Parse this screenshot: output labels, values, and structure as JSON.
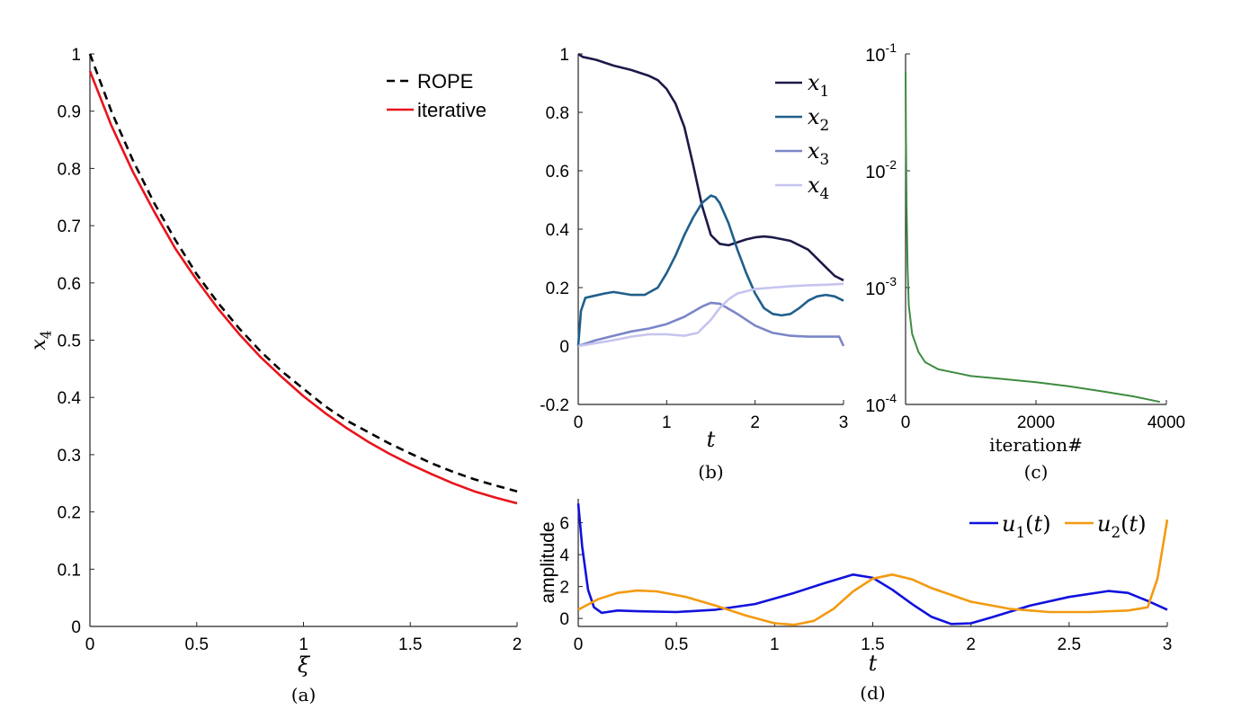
{
  "chart_data": [
    {
      "type": "line",
      "caption": "(a)",
      "xlabel": "ξ",
      "ylabel": "x4",
      "xlim": [
        0,
        2
      ],
      "ylim": [
        0,
        1
      ],
      "xticks": [
        "0",
        "0.5",
        "1",
        "1.5",
        "2"
      ],
      "yticks": [
        "0",
        "0.1",
        "0.2",
        "0.3",
        "0.4",
        "0.5",
        "0.6",
        "0.7",
        "0.8",
        "0.9",
        "1"
      ],
      "legend_position": "top-right",
      "series": [
        {
          "name": "ROPE",
          "color": "#000000",
          "dash": "dashed",
          "x": [
            0,
            0.1,
            0.2,
            0.3,
            0.4,
            0.5,
            0.6,
            0.7,
            0.8,
            0.9,
            1.0,
            1.1,
            1.2,
            1.3,
            1.4,
            1.5,
            1.6,
            1.7,
            1.8,
            1.9,
            2.0
          ],
          "y": [
            1.0,
            0.9,
            0.815,
            0.74,
            0.675,
            0.615,
            0.565,
            0.52,
            0.48,
            0.445,
            0.415,
            0.385,
            0.36,
            0.34,
            0.32,
            0.302,
            0.285,
            0.27,
            0.257,
            0.246,
            0.236
          ]
        },
        {
          "name": "iterative",
          "color": "#e8141b",
          "dash": "solid",
          "x": [
            0,
            0.1,
            0.2,
            0.3,
            0.4,
            0.5,
            0.6,
            0.7,
            0.8,
            0.9,
            1.0,
            1.1,
            1.2,
            1.3,
            1.4,
            1.5,
            1.6,
            1.7,
            1.8,
            1.9,
            2.0
          ],
          "y": [
            0.97,
            0.875,
            0.795,
            0.725,
            0.66,
            0.605,
            0.555,
            0.51,
            0.47,
            0.435,
            0.402,
            0.373,
            0.347,
            0.323,
            0.302,
            0.283,
            0.266,
            0.25,
            0.236,
            0.225,
            0.215
          ]
        }
      ]
    },
    {
      "type": "line",
      "caption": "(b)",
      "xlabel": "t",
      "ylabel": "",
      "xlim": [
        0,
        3
      ],
      "ylim": [
        -0.2,
        1
      ],
      "xticks": [
        "0",
        "1",
        "2",
        "3"
      ],
      "yticks": [
        "-0.2",
        "0",
        "0.2",
        "0.4",
        "0.6",
        "0.8",
        "1"
      ],
      "legend_position": "top-right",
      "series": [
        {
          "name": "x1",
          "color": "#1c1a48",
          "x": [
            0,
            0.05,
            0.2,
            0.4,
            0.6,
            0.8,
            0.9,
            1.0,
            1.1,
            1.2,
            1.3,
            1.4,
            1.5,
            1.6,
            1.7,
            1.8,
            1.9,
            2.0,
            2.1,
            2.2,
            2.4,
            2.6,
            2.8,
            2.9,
            3.0
          ],
          "y": [
            1.0,
            0.99,
            0.98,
            0.96,
            0.945,
            0.925,
            0.91,
            0.88,
            0.83,
            0.75,
            0.62,
            0.48,
            0.38,
            0.35,
            0.345,
            0.355,
            0.365,
            0.372,
            0.375,
            0.372,
            0.36,
            0.33,
            0.27,
            0.24,
            0.225
          ]
        },
        {
          "name": "x2",
          "color": "#1f5f8b",
          "x": [
            0,
            0.03,
            0.08,
            0.15,
            0.3,
            0.4,
            0.5,
            0.6,
            0.75,
            0.9,
            1.0,
            1.1,
            1.2,
            1.3,
            1.4,
            1.5,
            1.55,
            1.6,
            1.7,
            1.8,
            1.9,
            2.0,
            2.1,
            2.2,
            2.3,
            2.4,
            2.5,
            2.6,
            2.7,
            2.8,
            2.9,
            3.0
          ],
          "y": [
            0.0,
            0.12,
            0.165,
            0.17,
            0.18,
            0.185,
            0.18,
            0.175,
            0.175,
            0.2,
            0.25,
            0.31,
            0.38,
            0.44,
            0.49,
            0.515,
            0.51,
            0.49,
            0.42,
            0.33,
            0.25,
            0.18,
            0.13,
            0.11,
            0.105,
            0.11,
            0.13,
            0.155,
            0.17,
            0.175,
            0.17,
            0.155
          ]
        },
        {
          "name": "x3",
          "color": "#7a86c8",
          "x": [
            0,
            0.2,
            0.4,
            0.6,
            0.8,
            1.0,
            1.2,
            1.4,
            1.5,
            1.6,
            1.8,
            2.0,
            2.2,
            2.4,
            2.6,
            2.8,
            2.95,
            3.0
          ],
          "y": [
            0.0,
            0.02,
            0.035,
            0.05,
            0.06,
            0.075,
            0.1,
            0.135,
            0.148,
            0.145,
            0.11,
            0.07,
            0.045,
            0.035,
            0.032,
            0.032,
            0.032,
            0.0
          ]
        },
        {
          "name": "x4",
          "color": "#c6c4ef",
          "x": [
            0,
            0.2,
            0.4,
            0.6,
            0.8,
            1.0,
            1.2,
            1.35,
            1.5,
            1.6,
            1.7,
            1.8,
            2.0,
            2.2,
            2.4,
            2.6,
            2.8,
            3.0
          ],
          "y": [
            0.0,
            0.01,
            0.02,
            0.032,
            0.04,
            0.04,
            0.035,
            0.045,
            0.09,
            0.13,
            0.16,
            0.18,
            0.195,
            0.2,
            0.205,
            0.208,
            0.21,
            0.213
          ]
        }
      ]
    },
    {
      "type": "line",
      "caption": "(c)",
      "xlabel": "iteration#",
      "ylabel": "",
      "xlim": [
        0,
        4000
      ],
      "ylim": [
        0.0001,
        0.1
      ],
      "yscale": "log",
      "xticks": [
        "0",
        "2000",
        "4000"
      ],
      "ytick_base": "10",
      "ytick_exponents": [
        "-1",
        "-2",
        "-3",
        "-4"
      ],
      "series": [
        {
          "name": "",
          "color": "#3d8c40",
          "x": [
            0,
            5,
            15,
            30,
            50,
            100,
            200,
            300,
            500,
            800,
            1000,
            1500,
            2000,
            2500,
            3000,
            3500,
            3900
          ],
          "y": [
            0.07,
            0.02,
            0.005,
            0.0015,
            0.0007,
            0.0004,
            0.00028,
            0.00023,
            0.0002,
            0.000185,
            0.000175,
            0.000165,
            0.000155,
            0.000143,
            0.00013,
            0.000117,
            0.000105
          ]
        }
      ]
    },
    {
      "type": "line",
      "caption": "(d)",
      "xlabel": "t",
      "ylabel": "amplitude",
      "xlim": [
        0,
        3
      ],
      "ylim": [
        -0.5,
        7.5
      ],
      "xticks": [
        "0",
        "0.5",
        "1",
        "1.5",
        "2",
        "2.5",
        "3"
      ],
      "yticks": [
        "0",
        "2",
        "4",
        "6"
      ],
      "legend_position": "top-right",
      "series": [
        {
          "name": "u1(t)",
          "color": "#1111dd",
          "x": [
            0,
            0.02,
            0.05,
            0.08,
            0.12,
            0.2,
            0.3,
            0.5,
            0.7,
            0.9,
            1.1,
            1.25,
            1.4,
            1.5,
            1.6,
            1.7,
            1.8,
            1.9,
            2.0,
            2.1,
            2.3,
            2.5,
            2.7,
            2.8,
            2.9,
            3.0
          ],
          "y": [
            7.2,
            4.5,
            1.8,
            0.7,
            0.35,
            0.5,
            0.45,
            0.4,
            0.55,
            0.9,
            1.6,
            2.2,
            2.75,
            2.55,
            1.8,
            0.9,
            0.1,
            -0.35,
            -0.3,
            0.05,
            0.8,
            1.35,
            1.72,
            1.6,
            1.1,
            0.55
          ]
        },
        {
          "name": "u2(t)",
          "color": "#f39a12",
          "x": [
            0,
            0.1,
            0.2,
            0.3,
            0.4,
            0.55,
            0.7,
            0.85,
            1.0,
            1.1,
            1.2,
            1.3,
            1.4,
            1.5,
            1.6,
            1.7,
            1.8,
            2.0,
            2.2,
            2.4,
            2.6,
            2.8,
            2.9,
            2.95,
            3.0
          ],
          "y": [
            0.55,
            1.2,
            1.6,
            1.75,
            1.7,
            1.35,
            0.8,
            0.2,
            -0.3,
            -0.4,
            -0.15,
            0.6,
            1.7,
            2.5,
            2.75,
            2.45,
            1.9,
            1.05,
            0.6,
            0.4,
            0.4,
            0.5,
            0.7,
            2.5,
            6.2
          ]
        }
      ]
    }
  ]
}
